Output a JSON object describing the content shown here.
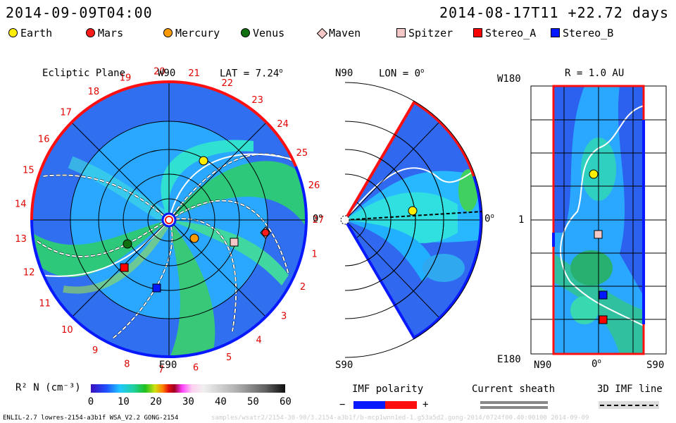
{
  "header": {
    "left_time": "2014-09-09T04:00",
    "right_time": "2014-08-17T11 +22.72 days"
  },
  "legend": [
    {
      "name": "Earth",
      "color": "#ffee00",
      "shape": "circle"
    },
    {
      "name": "Mars",
      "color": "#ff1a1a",
      "shape": "circle"
    },
    {
      "name": "Mercury",
      "color": "#ff9a00",
      "shape": "circle"
    },
    {
      "name": "Venus",
      "color": "#107010",
      "shape": "circle"
    },
    {
      "name": "Maven",
      "color": "#f5c8c8",
      "shape": "diamond"
    },
    {
      "name": "Spitzer",
      "color": "#f5c8c8",
      "shape": "square"
    },
    {
      "name": "Stereo_A",
      "color": "#ff0000",
      "shape": "square"
    },
    {
      "name": "Stereo_B",
      "color": "#0018ff",
      "shape": "square"
    }
  ],
  "ecliptic": {
    "title": "Ecliptic Plane",
    "top_label": "W90",
    "bottom_label": "E90",
    "right_label": "0",
    "lat_label": "LAT = 7.24",
    "carrington": [
      "1",
      "2",
      "3",
      "4",
      "5",
      "6",
      "7",
      "8",
      "9",
      "10",
      "11",
      "12",
      "13",
      "14",
      "15",
      "16",
      "17",
      "18",
      "19",
      "20",
      "21",
      "22",
      "23",
      "24",
      "25",
      "26",
      "27"
    ]
  },
  "meridional": {
    "top_label": "N90",
    "bottom_label": "S90",
    "right_label": "0",
    "lon_label": "LON = 0"
  },
  "radial": {
    "title": "R = 1.0 AU",
    "left_top": "W180",
    "left_mid": "1",
    "left_bottom": "E180",
    "bottom_left": "N90",
    "bottom_mid": "0",
    "bottom_right": "S90"
  },
  "colorbar": {
    "label": "R² N (cm⁻³)",
    "ticks": [
      "0",
      "10",
      "20",
      "30",
      "40",
      "50",
      "60"
    ]
  },
  "bottom_legends": {
    "imf_title": "IMF polarity",
    "imf_minus": "−",
    "imf_plus": "+",
    "sheath_title": "Current sheath",
    "imf3d_title": "3D IMF line"
  },
  "footer": {
    "left": "ENLIL-2.7 lowres-2154-a3b1f WSA_V2.2 GONG-2154",
    "right": "samples/wsatr2/2154-30-90/3.2154-a3b1f/b-mcp1wnn1ed-1.g53a5d2.gong-2014/0724f00.40:00100    2014-09-09"
  }
}
